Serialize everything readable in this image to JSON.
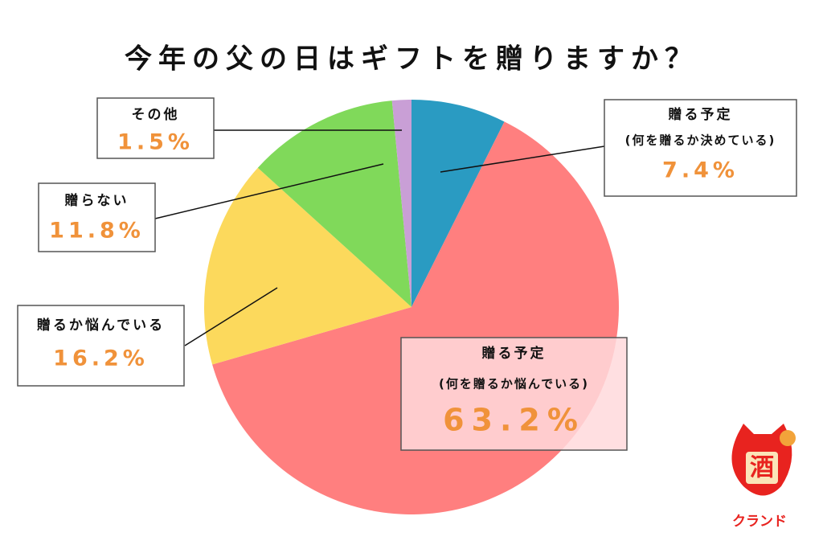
{
  "chart_data": {
    "type": "pie",
    "title": "今年の父の日はギフトを贈りますか？",
    "categories": [
      "贈る予定",
      "贈る予定",
      "贈るか悩んでいる",
      "贈らない",
      "その他"
    ],
    "category_notes": [
      "(何を贈るか決めている)",
      "(何を贈るか悩んでいる)",
      null,
      null,
      null
    ],
    "values": [
      7.4,
      63.2,
      16.2,
      11.8,
      1.5
    ],
    "value_labels": [
      "7.4%",
      "63.2%",
      "16.2%",
      "11.8%",
      "1.5%"
    ],
    "colors": [
      "#2a9bc2",
      "#ff7f7f",
      "#fcd95c",
      "#80d95a",
      "#c99fd6"
    ]
  },
  "logo": {
    "mark": "酒",
    "name": "クランド"
  }
}
